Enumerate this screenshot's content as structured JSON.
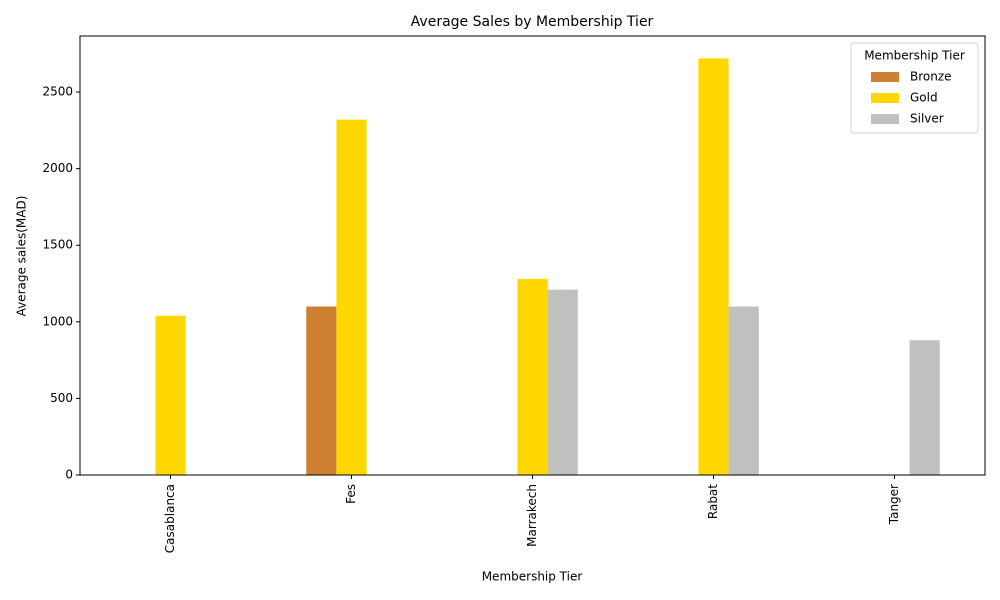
{
  "chart_data": {
    "type": "bar",
    "title": "Average Sales by Membership Tier",
    "x_label": "Membership Tier",
    "y_label": "Average sales(MAD)",
    "categories": [
      "Casablanca",
      "Fes",
      "Marrakech",
      "Rabat",
      "Tanger"
    ],
    "series": [
      {
        "name": "Bronze",
        "color": "#cd7f32",
        "values": [
          null,
          1100,
          null,
          null,
          null
        ]
      },
      {
        "name": "Gold",
        "color": "#ffd700",
        "values": [
          1040,
          2320,
          1280,
          2720,
          null
        ]
      },
      {
        "name": "Silver",
        "color": "#c0c0c0",
        "values": [
          null,
          null,
          1210,
          1100,
          880
        ]
      }
    ],
    "ylim": [
      0,
      2866
    ],
    "yticks": [
      0,
      500,
      1000,
      1500,
      2000,
      2500
    ],
    "legend_title": "Membership Tier",
    "legend_position": "upper right",
    "grid": false
  }
}
